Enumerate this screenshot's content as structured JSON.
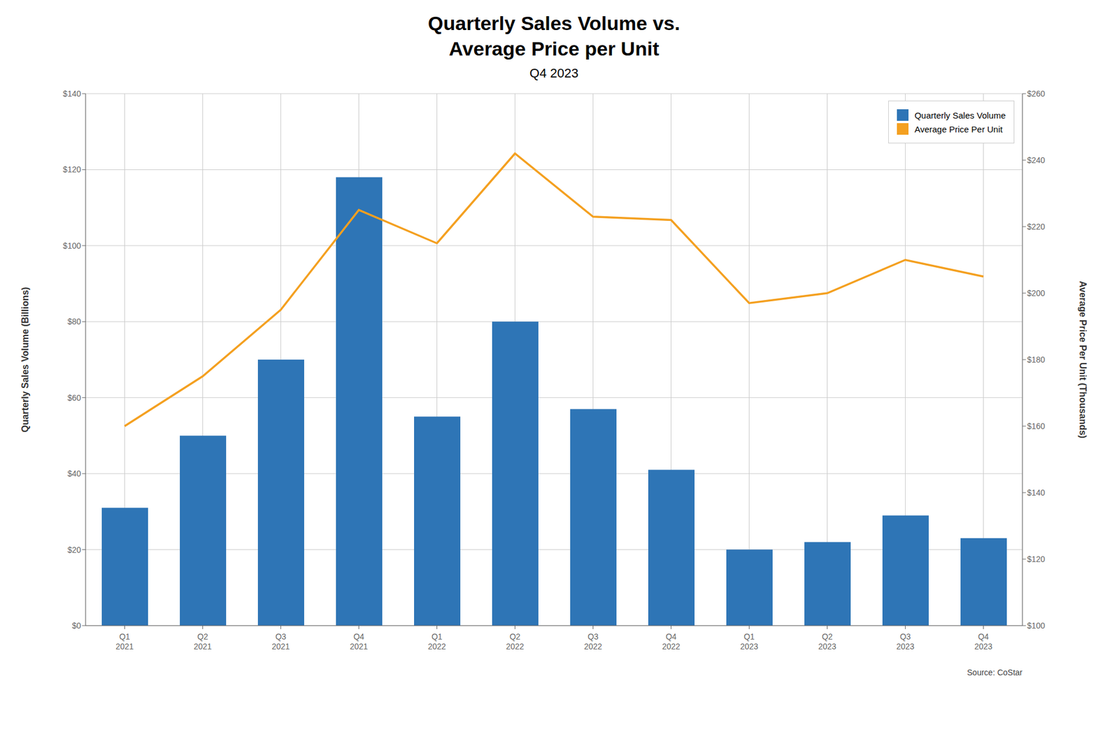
{
  "chart_data": {
    "type": "bar",
    "title": "Quarterly Sales Volume vs.\nAverage Price per Unit",
    "subtitle": "Q4 2023",
    "annotations": [
      "Source: CoStar"
    ],
    "categories": [
      "Q1\n2021",
      "Q2\n2021",
      "Q3\n2021",
      "Q4\n2021",
      "Q1\n2022",
      "Q2\n2022",
      "Q3\n2022",
      "Q4\n2022",
      "Q1\n2023",
      "Q2\n2023",
      "Q3\n2023",
      "Q4\n2023"
    ],
    "series": [
      {
        "name": "Quarterly Sales Volume",
        "type": "bar",
        "color": "#2E75B6",
        "values": [
          31,
          50,
          70,
          118,
          55,
          80,
          57,
          41,
          20,
          22,
          29,
          23
        ]
      },
      {
        "name": "Average Price Per Unit",
        "type": "line",
        "color": "#F4A020",
        "axis": "y2",
        "marker": "none",
        "values": [
          160,
          175,
          195,
          225,
          215,
          242,
          223,
          222,
          197,
          200,
          210,
          205
        ]
      }
    ],
    "ylabel": "Quarterly Sales Volume (Billions)",
    "y2label": "Average Price Per Unit (Thousands)",
    "ylim": [
      0,
      140
    ],
    "yticks": [
      {
        "value": 0,
        "label": "$0"
      },
      {
        "value": 20,
        "label": "$20"
      },
      {
        "value": 40,
        "label": "$40"
      },
      {
        "value": 60,
        "label": "$60"
      },
      {
        "value": 80,
        "label": "$80"
      },
      {
        "value": 100,
        "label": "$100"
      },
      {
        "value": 120,
        "label": "$120"
      },
      {
        "value": 140,
        "label": "$140"
      }
    ],
    "y2lim": [
      100,
      260
    ],
    "y2ticks": [
      {
        "value": 100,
        "label": "$100"
      },
      {
        "value": 120,
        "label": "$120"
      },
      {
        "value": 140,
        "label": "$140"
      },
      {
        "value": 160,
        "label": "$160"
      },
      {
        "value": 180,
        "label": "$180"
      },
      {
        "value": 200,
        "label": "$200"
      },
      {
        "value": 220,
        "label": "$220"
      },
      {
        "value": 240,
        "label": "$240"
      },
      {
        "value": 260,
        "label": "$260"
      }
    ],
    "grid": true,
    "legend": "upper right"
  }
}
